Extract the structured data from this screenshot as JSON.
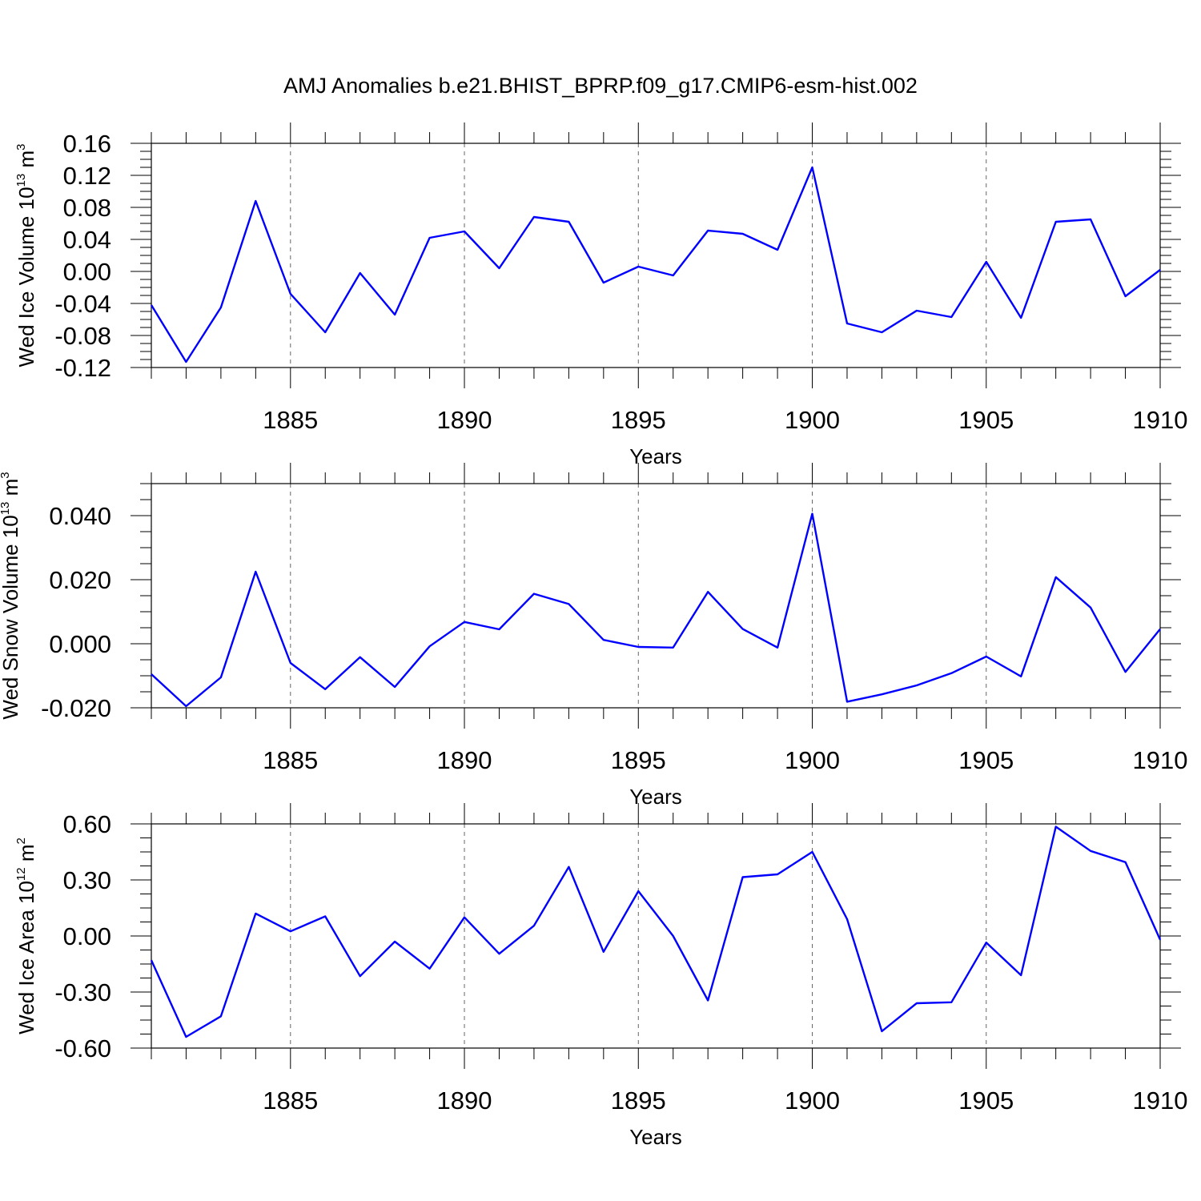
{
  "chart_data": [
    {
      "type": "line",
      "title": "AMJ Anomalies b.e21.BHIST_BPRP.f09_g17.CMIP6-esm-hist.002",
      "xlabel": "Years",
      "ylabel": {
        "main": "Wed Ice Volume 10",
        "exp": "13",
        "unit": " m",
        "unit_exp": "3"
      },
      "xlim": [
        1881,
        1910
      ],
      "ylim": [
        -0.12,
        0.16
      ],
      "x_ticks": [
        1885,
        1890,
        1895,
        1900,
        1905,
        1910
      ],
      "x_tick_labels": [
        "1885",
        "1890",
        "1895",
        "1900",
        "1905",
        "1910"
      ],
      "y_ticks": [
        -0.12,
        -0.08,
        -0.04,
        0.0,
        0.04,
        0.08,
        0.12,
        0.16
      ],
      "y_tick_labels": [
        "-0.12",
        "-0.08",
        "-0.04",
        "0.00",
        "0.04",
        "0.08",
        "0.12",
        "0.16"
      ],
      "grid": "vertical dashed at labeled years",
      "color": "#0000ff",
      "x": [
        1881,
        1882,
        1883,
        1884,
        1885,
        1886,
        1887,
        1888,
        1889,
        1890,
        1891,
        1892,
        1893,
        1894,
        1895,
        1896,
        1897,
        1898,
        1899,
        1900,
        1901,
        1902,
        1903,
        1904,
        1905,
        1906,
        1907,
        1908,
        1909,
        1910
      ],
      "values": [
        -0.042,
        -0.113,
        -0.045,
        0.088,
        -0.028,
        -0.076,
        -0.002,
        -0.054,
        0.042,
        0.05,
        0.004,
        0.068,
        0.062,
        -0.014,
        0.006,
        -0.005,
        0.051,
        0.047,
        0.027,
        0.13,
        -0.065,
        -0.076,
        -0.049,
        -0.057,
        0.012,
        -0.058,
        0.062,
        0.065,
        -0.031,
        0.002
      ]
    },
    {
      "type": "line",
      "xlabel": "Years",
      "ylabel": {
        "main": "Wed Snow Volume 10",
        "exp": "13",
        "unit": " m",
        "unit_exp": "3"
      },
      "xlim": [
        1881,
        1910
      ],
      "ylim": [
        -0.02,
        0.05
      ],
      "x_ticks": [
        1885,
        1890,
        1895,
        1900,
        1905,
        1910
      ],
      "x_tick_labels": [
        "1885",
        "1890",
        "1895",
        "1900",
        "1905",
        "1910"
      ],
      "y_ticks": [
        -0.02,
        0.0,
        0.02,
        0.04
      ],
      "y_tick_labels": [
        "-0.020",
        "0.000",
        "0.020",
        "0.040"
      ],
      "grid": "vertical dashed at labeled years",
      "color": "#0000ff",
      "x": [
        1881,
        1882,
        1883,
        1884,
        1885,
        1886,
        1887,
        1888,
        1889,
        1890,
        1891,
        1892,
        1893,
        1894,
        1895,
        1896,
        1897,
        1898,
        1899,
        1900,
        1901,
        1902,
        1903,
        1904,
        1905,
        1906,
        1907,
        1908,
        1909,
        1910
      ],
      "values": [
        -0.0095,
        -0.0195,
        -0.0105,
        0.0225,
        -0.006,
        -0.0142,
        -0.0042,
        -0.0135,
        -0.0008,
        0.0068,
        0.0045,
        0.0156,
        0.0124,
        0.0012,
        -0.001,
        -0.0012,
        0.0162,
        0.0046,
        -0.0012,
        0.0406,
        -0.0181,
        -0.0158,
        -0.013,
        -0.0092,
        -0.004,
        -0.0102,
        0.0208,
        0.0113,
        -0.0088,
        0.0046
      ]
    },
    {
      "type": "line",
      "xlabel": "Years",
      "ylabel": {
        "main": "Wed Ice Area 10",
        "exp": "12",
        "unit": " m",
        "unit_exp": "2"
      },
      "xlim": [
        1881,
        1910
      ],
      "ylim": [
        -0.6,
        0.6
      ],
      "x_ticks": [
        1885,
        1890,
        1895,
        1900,
        1905,
        1910
      ],
      "x_tick_labels": [
        "1885",
        "1890",
        "1895",
        "1900",
        "1905",
        "1910"
      ],
      "y_ticks": [
        -0.6,
        -0.3,
        0.0,
        0.3,
        0.6
      ],
      "y_tick_labels": [
        "-0.60",
        "-0.30",
        "0.00",
        "0.30",
        "0.60"
      ],
      "grid": "vertical dashed at labeled years",
      "color": "#0000ff",
      "x": [
        1881,
        1882,
        1883,
        1884,
        1885,
        1886,
        1887,
        1888,
        1889,
        1890,
        1891,
        1892,
        1893,
        1894,
        1895,
        1896,
        1897,
        1898,
        1899,
        1900,
        1901,
        1902,
        1903,
        1904,
        1905,
        1906,
        1907,
        1908,
        1909,
        1910
      ],
      "values": [
        -0.13,
        -0.54,
        -0.43,
        0.12,
        0.025,
        0.105,
        -0.215,
        -0.03,
        -0.175,
        0.1,
        -0.095,
        0.055,
        0.37,
        -0.085,
        0.24,
        0.0,
        -0.345,
        0.315,
        0.33,
        0.45,
        0.09,
        -0.51,
        -0.36,
        -0.355,
        -0.035,
        -0.21,
        0.585,
        0.455,
        0.395,
        -0.02
      ]
    }
  ]
}
